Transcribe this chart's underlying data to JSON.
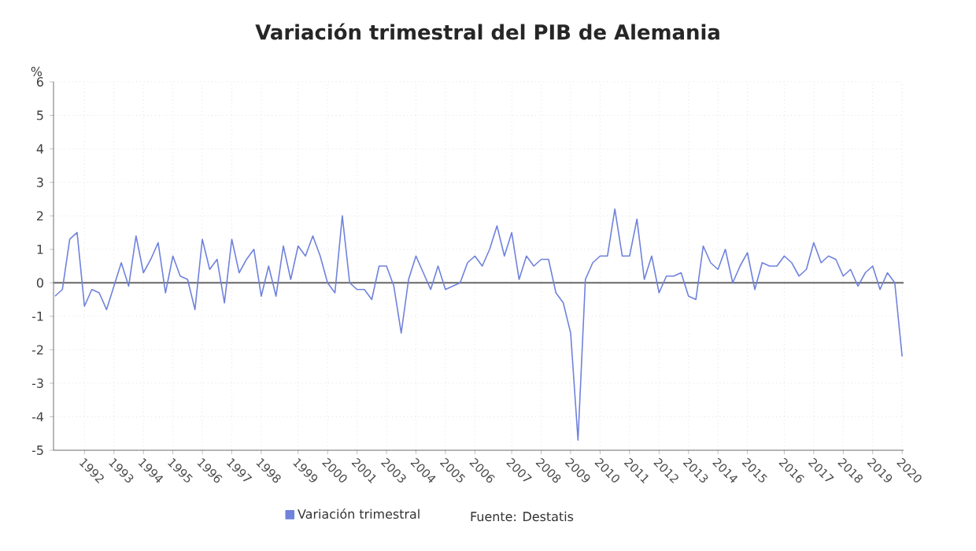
{
  "chart_data": {
    "type": "line",
    "title": "Variación trimestral del PIB de Alemania",
    "ylabel": "%",
    "categories": [
      null,
      null,
      null,
      null,
      "1992",
      null,
      null,
      null,
      "1993",
      null,
      null,
      null,
      "1994",
      null,
      null,
      null,
      "1995",
      null,
      null,
      null,
      "1996",
      null,
      null,
      null,
      "1997",
      null,
      null,
      null,
      "1998",
      null,
      null,
      null,
      null,
      "1999",
      null,
      null,
      null,
      "2000",
      null,
      null,
      null,
      "2001",
      null,
      null,
      null,
      "2003",
      null,
      null,
      null,
      "2004",
      null,
      null,
      null,
      "2005",
      null,
      null,
      null,
      "2006",
      null,
      null,
      null,
      null,
      "2007",
      null,
      null,
      null,
      "2008",
      null,
      null,
      null,
      "2009",
      null,
      null,
      null,
      "2010",
      null,
      null,
      null,
      "2011",
      null,
      null,
      null,
      "2012",
      null,
      null,
      null,
      "2013",
      null,
      null,
      null,
      "2014",
      null,
      null,
      null,
      "2015",
      null,
      null,
      null,
      null,
      "2016",
      null,
      null,
      null,
      "2017",
      null,
      null,
      null,
      "2018",
      null,
      null,
      null,
      "2019",
      null,
      null,
      null,
      "2020"
    ],
    "series": [
      {
        "name": "Variación trimestral",
        "color": "#6f82dc",
        "values": [
          -0.4,
          -0.2,
          1.3,
          1.5,
          -0.7,
          -0.2,
          -0.3,
          -0.8,
          -0.1,
          0.6,
          -0.1,
          1.4,
          0.3,
          0.7,
          1.2,
          -0.3,
          0.8,
          0.2,
          0.1,
          -0.8,
          1.3,
          0.4,
          0.7,
          -0.6,
          1.3,
          0.3,
          0.7,
          1.0,
          -0.4,
          0.5,
          -0.4,
          1.1,
          0.1,
          1.1,
          0.8,
          1.4,
          0.8,
          0.0,
          -0.3,
          2.0,
          0.0,
          -0.2,
          -0.2,
          -0.5,
          0.5,
          0.5,
          -0.1,
          -1.5,
          0.1,
          0.8,
          0.3,
          -0.2,
          0.5,
          -0.2,
          -0.1,
          0.0,
          0.6,
          0.8,
          0.5,
          1.0,
          1.7,
          0.8,
          1.5,
          0.1,
          0.8,
          0.5,
          0.7,
          0.7,
          -0.3,
          -0.6,
          -1.5,
          -4.7,
          0.1,
          0.6,
          0.8,
          0.8,
          2.2,
          0.8,
          0.8,
          1.9,
          0.1,
          0.8,
          -0.3,
          0.2,
          0.2,
          0.3,
          -0.4,
          -0.5,
          1.1,
          0.6,
          0.4,
          1.0,
          0.0,
          0.5,
          0.9,
          -0.2,
          0.6,
          0.5,
          0.5,
          0.8,
          0.6,
          0.2,
          0.4,
          1.2,
          0.6,
          0.8,
          0.7,
          0.2,
          0.4,
          -0.1,
          0.3,
          0.5,
          -0.2,
          0.3,
          0.0,
          -2.2
        ]
      }
    ],
    "ylim": [
      -5,
      6
    ],
    "yticks": [
      -5,
      -4,
      -3,
      -2,
      -1,
      0,
      1,
      2,
      3,
      4,
      5,
      6
    ],
    "grid": true,
    "legend": "bottom",
    "marker": "none",
    "line_style": "solid",
    "ref_lines": [
      {
        "axis": "y",
        "value": 0,
        "color": "#666666"
      }
    ],
    "annotations": [
      "Fuente: Destatis"
    ]
  }
}
